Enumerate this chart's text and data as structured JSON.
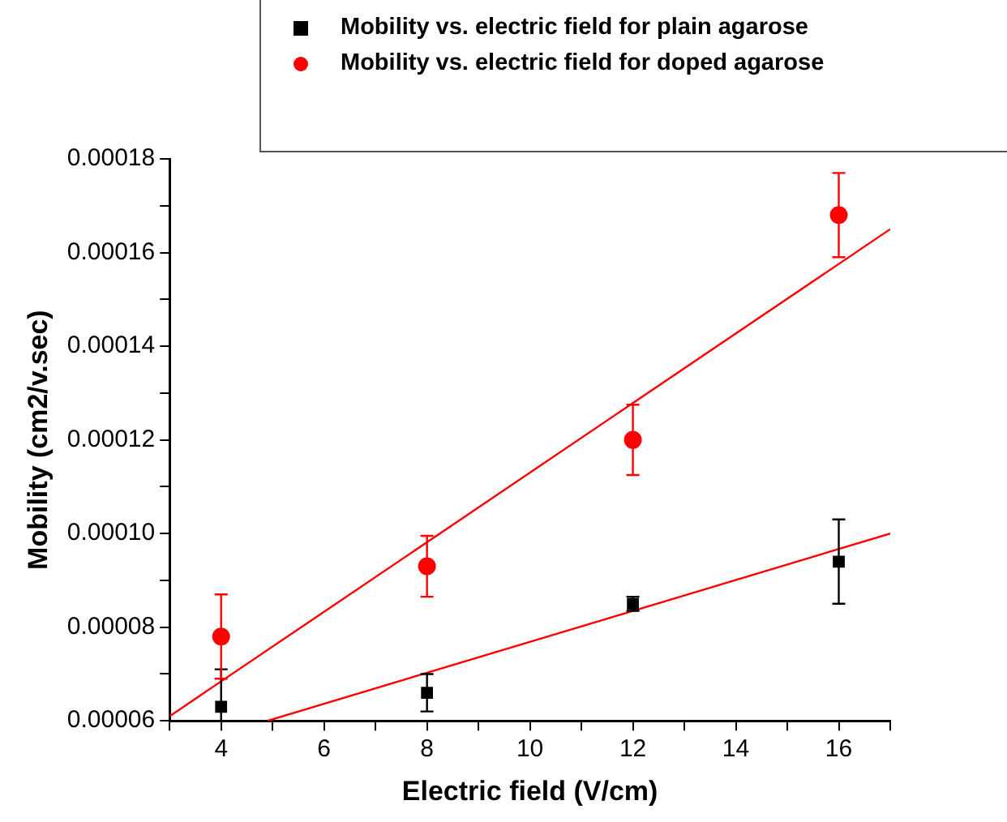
{
  "chart_data": {
    "type": "scatter",
    "xlabel": "Electric field (V/cm)",
    "ylabel": "Mobility (cm2/v.sec)",
    "legend": "top right",
    "xlim": [
      3,
      17
    ],
    "xticks": [
      {
        "value": 3,
        "label": null
      },
      4,
      {
        "value": 5,
        "label": null
      },
      6,
      {
        "value": 7,
        "label": null
      },
      8,
      {
        "value": 9,
        "label": null
      },
      10,
      {
        "value": 11,
        "label": null
      },
      12,
      {
        "value": 13,
        "label": null
      },
      14,
      {
        "value": 15,
        "label": null
      },
      16,
      {
        "value": 17,
        "label": null
      }
    ],
    "ylim": [
      6e-05,
      0.00018
    ],
    "yticks": [
      {
        "value": 6e-05,
        "label": "0.00006"
      },
      {
        "value": 7e-05,
        "label": null
      },
      {
        "value": 8e-05,
        "label": "0.00008"
      },
      {
        "value": 9e-05,
        "label": null
      },
      {
        "value": 0.0001,
        "label": "0.00010"
      },
      {
        "value": 0.00011,
        "label": null
      },
      {
        "value": 0.00012,
        "label": "0.00012"
      },
      {
        "value": 0.00013,
        "label": null
      },
      {
        "value": 0.00014,
        "label": "0.00014"
      },
      {
        "value": 0.00015,
        "label": null
      },
      {
        "value": 0.00016,
        "label": "0.00016"
      },
      {
        "value": 0.00017,
        "label": null
      },
      {
        "value": 0.00018,
        "label": "0.00018"
      }
    ],
    "series": [
      {
        "name": "Mobility vs. electric field for plain agarose",
        "color": "#000000",
        "marker": "square",
        "x": [
          4,
          8,
          12,
          16
        ],
        "values": [
          6.3e-05,
          6.6e-05,
          8.5e-05,
          9.4e-05
        ],
        "errors": [
          [
            6e-05,
            7.1e-05
          ],
          4e-06,
          1.5e-06,
          9e-06
        ]
      },
      {
        "name": "Mobility vs. electric field for doped agarose",
        "color": "#ff0000",
        "marker": "circle",
        "x": [
          4,
          8,
          12,
          16
        ],
        "values": [
          7.8e-05,
          9.3e-05,
          0.00012,
          0.000168
        ],
        "errors": [
          9e-06,
          6.5e-06,
          7.5e-06,
          9e-06
        ]
      },
      {
        "type": "line",
        "color": "#ff0000",
        "marker": "none",
        "x": [
          4.9,
          17
        ],
        "values": [
          6e-05,
          0.0001
        ]
      },
      {
        "type": "line",
        "color": "#ff0000",
        "marker": "none",
        "x": [
          3,
          17
        ],
        "values": [
          6.1e-05,
          0.000165
        ]
      }
    ]
  }
}
